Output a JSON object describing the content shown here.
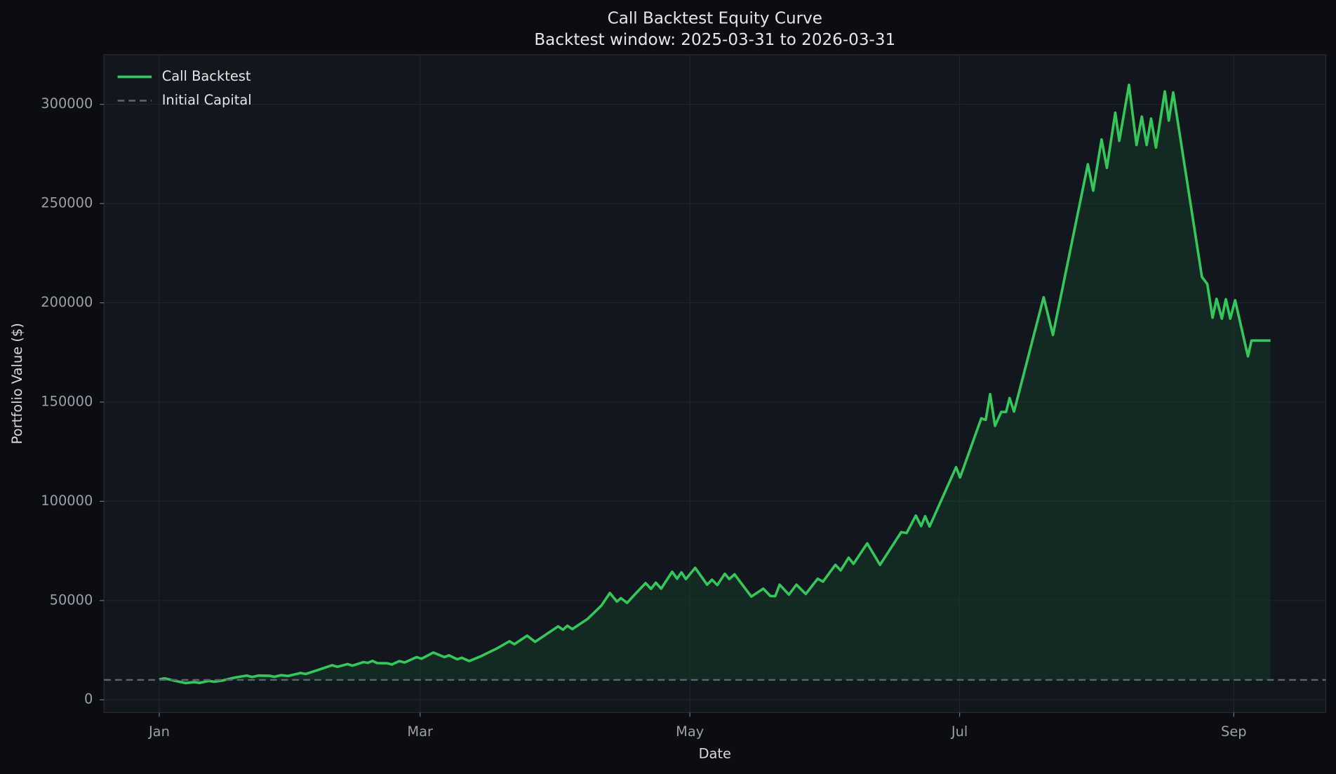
{
  "chart_data": {
    "type": "line",
    "title": "Call Backtest Equity Curve",
    "subtitle": "Backtest window: 2025-03-31 to 2026-03-31",
    "x_label": "Date",
    "y_label": "Portfolio Value ($)",
    "xlim": [
      -12.5,
      263.8
    ],
    "ylim": [
      -6400,
      325000
    ],
    "xticks": [
      {
        "value": 0,
        "label": "Jan"
      },
      {
        "value": 59,
        "label": "Mar"
      },
      {
        "value": 120,
        "label": "May"
      },
      {
        "value": 181,
        "label": "Jul"
      },
      {
        "value": 243,
        "label": "Sep"
      }
    ],
    "yticks": [
      0,
      50000,
      100000,
      150000,
      200000,
      250000,
      300000
    ],
    "grid": true,
    "legend": "upper left",
    "x": [
      0,
      1.2,
      3.5,
      6.0,
      7.9,
      9.1,
      11.2,
      12.5,
      14.5,
      17.1,
      19.8,
      21.0,
      22.4,
      24.9,
      26.0,
      27.6,
      29.1,
      32.0,
      33.1,
      35.6,
      39.1,
      40.3,
      42.6,
      43.7,
      46.2,
      47.2,
      48.2,
      49.3,
      51.6,
      52.6,
      54.3,
      55.5,
      58.2,
      59.3,
      62.0,
      64.5,
      65.5,
      67.4,
      68.4,
      70.1,
      72.8,
      76.3,
      79.2,
      80.3,
      83.2,
      85.0,
      90.2,
      91.3,
      92.3,
      93.4,
      96.9,
      100.0,
      101.9,
      103.5,
      104.4,
      105.8,
      107.3,
      110.0,
      111.2,
      112.3,
      113.5,
      116.0,
      117.1,
      118.1,
      119.1,
      121.2,
      123.9,
      125.0,
      126.2,
      127.9,
      128.9,
      130.1,
      133.9,
      136.6,
      138.2,
      139.3,
      140.3,
      142.4,
      144.1,
      146.2,
      148.9,
      150.1,
      152.9,
      154.1,
      155.9,
      157.0,
      160.1,
      163.0,
      167.8,
      169.0,
      171.1,
      172.3,
      173.2,
      174.2,
      180.2,
      181.1,
      185.9,
      186.9,
      187.9,
      189.0,
      190.4,
      191.5,
      192.3,
      193.3,
      200.0,
      202.1,
      210.0,
      211.2,
      213.1,
      214.3,
      216.2,
      217.1,
      219.3,
      221.0,
      222.2,
      223.3,
      224.3,
      225.4,
      227.4,
      228.3,
      229.3,
      235.8,
      237.0,
      238.2,
      239.1,
      240.3,
      241.2,
      242.2,
      243.3,
      246.2,
      247.0,
      251.3
    ],
    "series": [
      {
        "name": "Call Backtest",
        "color": "#34c759",
        "fill": "#1a3a28",
        "values": [
          10300,
          10800,
          9600,
          8400,
          8900,
          8500,
          9500,
          9100,
          9800,
          11200,
          12200,
          11500,
          12200,
          12100,
          11600,
          12400,
          12000,
          13500,
          13000,
          14800,
          17400,
          16600,
          18000,
          17200,
          19000,
          18600,
          19600,
          18500,
          18400,
          17800,
          19500,
          18800,
          21500,
          20700,
          23800,
          21500,
          22400,
          20400,
          21200,
          19500,
          22000,
          25800,
          29500,
          28000,
          32300,
          29200,
          37000,
          35300,
          37300,
          35600,
          40800,
          47500,
          53800,
          49500,
          51200,
          48800,
          52500,
          58800,
          55900,
          59000,
          56000,
          64500,
          61000,
          64200,
          60800,
          66500,
          58000,
          60500,
          57800,
          63500,
          60800,
          63200,
          52000,
          56000,
          52300,
          52200,
          58000,
          53000,
          58000,
          53300,
          61000,
          59500,
          68000,
          65200,
          71600,
          68500,
          78800,
          68000,
          84500,
          84000,
          92800,
          87500,
          92500,
          87300,
          117200,
          112000,
          141800,
          141000,
          154000,
          138000,
          145000,
          145000,
          152000,
          145200,
          202800,
          183800,
          269800,
          256500,
          282300,
          268000,
          295800,
          281600,
          309800,
          279500,
          293800,
          279500,
          292800,
          278200,
          306500,
          291800,
          306000,
          213000,
          209500,
          192500,
          202000,
          192000,
          201800,
          192000,
          201300,
          173000,
          181000,
          181000
        ]
      }
    ],
    "hline": {
      "name": "Initial Capital",
      "value": 10000,
      "color": "#5f6670",
      "style": "dashed"
    }
  }
}
